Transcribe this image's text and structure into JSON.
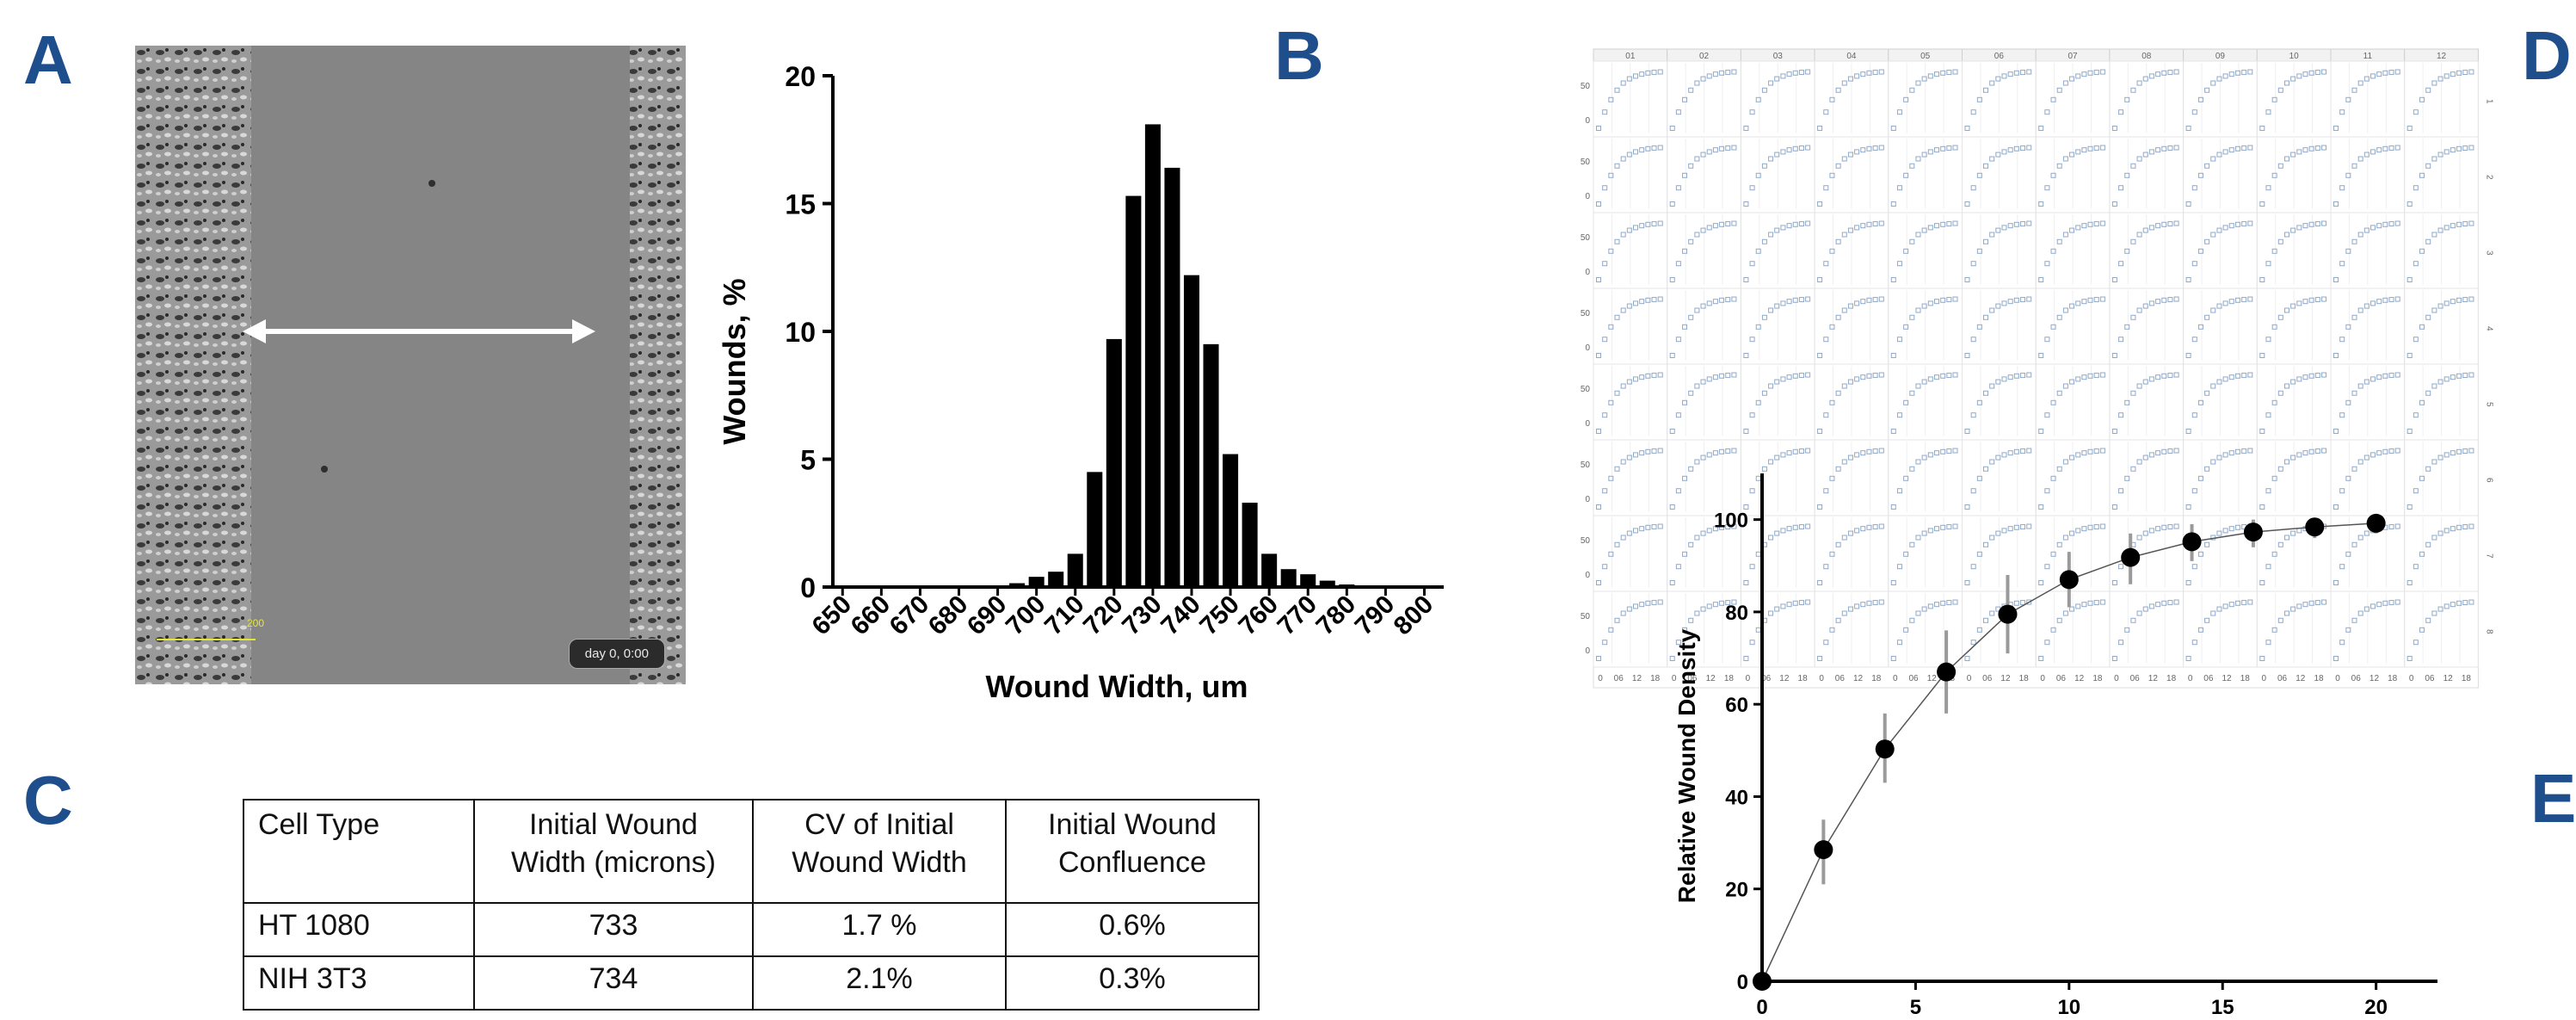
{
  "panels": {
    "a": "A",
    "b": "B",
    "c": "C",
    "d": "D",
    "e": "E"
  },
  "micrograph": {
    "stamp": "day 0, 0:00",
    "scale_label": "200"
  },
  "table": {
    "headers": [
      "Cell Type",
      "Initial Wound Width (microns)",
      "CV of Initial Wound Width",
      "Initial Wound Confluence"
    ],
    "rows": [
      [
        "HT 1080",
        "733",
        "1.7 %",
        "0.6%"
      ],
      [
        "NIH 3T3",
        "734",
        "2.1%",
        "0.3%"
      ]
    ]
  },
  "grid": {
    "columns": [
      "01",
      "02",
      "03",
      "04",
      "05",
      "06",
      "07",
      "08",
      "09",
      "10",
      "11",
      "12"
    ],
    "rows": [
      "1",
      "2",
      "3",
      "4",
      "5",
      "6",
      "7",
      "8"
    ],
    "x_ticks": [
      "0",
      "06",
      "12",
      "18"
    ],
    "y_ticks": [
      "50",
      "0"
    ]
  },
  "chart_data": [
    {
      "type": "bar",
      "xlabel": "Wound Width, um",
      "ylabel": "Wounds, %",
      "ylim": [
        0,
        20
      ],
      "yticks": [
        0,
        5,
        10,
        15,
        20
      ],
      "xticks": [
        650,
        660,
        670,
        680,
        690,
        700,
        710,
        720,
        730,
        740,
        750,
        760,
        770,
        780,
        790,
        800
      ],
      "categories": [
        650,
        655,
        660,
        665,
        670,
        675,
        680,
        685,
        690,
        695,
        700,
        705,
        710,
        715,
        720,
        725,
        730,
        735,
        740,
        745,
        750,
        755,
        760,
        765,
        770,
        775,
        780,
        785,
        790,
        795,
        800
      ],
      "values": [
        0,
        0,
        0,
        0,
        0,
        0,
        0,
        0,
        0.05,
        0.15,
        0.4,
        0.6,
        1.3,
        4.5,
        9.7,
        15.3,
        18.1,
        16.4,
        12.2,
        9.5,
        5.2,
        3.3,
        1.3,
        0.7,
        0.5,
        0.25,
        0.1,
        0,
        0,
        0,
        0
      ]
    },
    {
      "type": "scatter",
      "ylabel": "Relative Wound Density",
      "xlim": [
        0,
        22
      ],
      "ylim": [
        0,
        110
      ],
      "xticks": [
        0,
        5,
        10,
        15,
        20
      ],
      "yticks": [
        0,
        20,
        40,
        60,
        80,
        100
      ],
      "x": [
        0,
        2,
        4,
        6,
        8,
        10,
        12,
        14,
        16,
        18,
        20
      ],
      "y": [
        0,
        28.5,
        50.3,
        67,
        79.5,
        87,
        91.8,
        95.2,
        97.3,
        98.4,
        99.2
      ],
      "error_low": [
        0,
        21,
        43,
        58,
        71,
        81,
        86,
        91,
        94,
        96,
        97
      ],
      "error_high": [
        0,
        35,
        58,
        76,
        88,
        93,
        97,
        99,
        100,
        100,
        101
      ],
      "curve": "fit"
    }
  ]
}
